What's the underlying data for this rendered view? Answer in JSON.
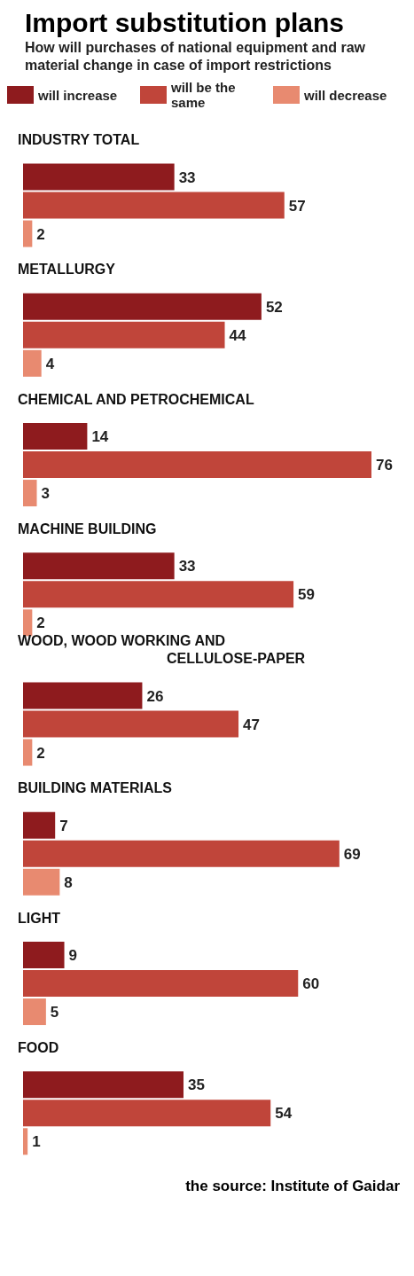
{
  "chart_data": {
    "type": "bar",
    "orientation": "horizontal",
    "title": "Import substitution plans",
    "subtitle": "How will purchases of national equipment and raw material change in case of import restrictions",
    "categories": [
      "INDUSTRY TOTAL",
      "METALLURGY",
      "CHEMICAL AND PETROCHEMICAL",
      "MACHINE BUILDING",
      "WOOD, WOOD WORKING AND\nCELLULOSE-PAPER",
      "BUILDING MATERIALS",
      "LIGHT",
      "FOOD"
    ],
    "series": [
      {
        "name": "will increase",
        "color": "#8e1b1e",
        "values": [
          33,
          52,
          14,
          33,
          26,
          7,
          9,
          35
        ]
      },
      {
        "name": "will be the same",
        "color": "#c0453a",
        "values": [
          57,
          44,
          76,
          59,
          47,
          69,
          60,
          54
        ]
      },
      {
        "name": "will decrease",
        "color": "#e88a70",
        "values": [
          2,
          4,
          3,
          2,
          2,
          8,
          5,
          1
        ]
      }
    ],
    "data_labels": true,
    "legend": "top",
    "annotations": [
      "the source: Institute of Gaidar"
    ]
  }
}
